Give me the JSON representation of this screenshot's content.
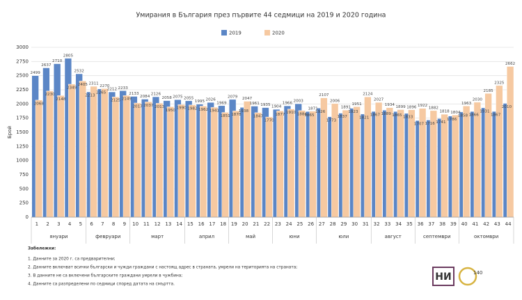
{
  "chart_data": {
    "type": "bar",
    "title": "Умирания в България през първите 44 седмици на 2019 и 2020 година",
    "y_label": "Брой",
    "categories": [
      "1",
      "2",
      "3",
      "4",
      "5",
      "6",
      "7",
      "8",
      "9",
      "10",
      "11",
      "12",
      "13",
      "14",
      "15",
      "16",
      "17",
      "18",
      "19",
      "20",
      "21",
      "22",
      "23",
      "24",
      "25",
      "26",
      "27",
      "28",
      "29",
      "30",
      "31",
      "32",
      "33",
      "34",
      "35",
      "36",
      "37",
      "38",
      "39",
      "40",
      "41",
      "42",
      "43",
      "44"
    ],
    "months": [
      "януари",
      "февруари",
      "март",
      "април",
      "май",
      "юни",
      "юли",
      "август",
      "септември",
      "октомври"
    ],
    "series": [
      {
        "name": "2019",
        "color": "#5b86c6",
        "values": [
          2499,
          2637,
          2710,
          2805,
          2532,
          2213,
          2265,
          2212,
          2233,
          2133,
          2084,
          2126,
          2058,
          2075,
          2055,
          1995,
          2026,
          1969,
          2079,
          1938,
          1961,
          1935,
          1904,
          1966,
          2003,
          1865,
          1926,
          1773,
          1837,
          1923,
          1821,
          1867,
          1889,
          1865,
          1833,
          1707,
          1716,
          1741,
          1786,
          1858,
          1866,
          1931,
          1867,
          2010
        ]
      },
      {
        "name": "2020",
        "color": "#f6c9a1",
        "values": [
          2068,
          2230,
          2148,
          2349,
          2405,
          2311,
          2270,
          2125,
          2149,
          2017,
          2037,
          2013,
          1950,
          1990,
          1982,
          1962,
          1941,
          1851,
          1878,
          2047,
          1847,
          1770,
          1877,
          1910,
          1884,
          1871,
          2107,
          2006,
          1891,
          1951,
          2124,
          2027,
          1934,
          1899,
          1896,
          1922,
          1882,
          1818,
          1804,
          1963,
          2030,
          2185,
          2325,
          2662
        ]
      }
    ],
    "ylim": [
      0,
      3000
    ],
    "yticks": [
      0,
      250,
      500,
      750,
      1000,
      1250,
      1500,
      1750,
      2000,
      2250,
      2500,
      2750,
      3000
    ],
    "grid": true,
    "legend": "top",
    "notes_title": "Забележки:",
    "notes": [
      "1. Данните за 2020 г. са предварителни;",
      "2. Данните включват всички български и чужди граждани с настоящ адрес в страната, умрели на територията на страната;",
      "3. В данните не са включени българските граждани умрели в чужбина;",
      "4. Данните са разпределени по седмици според датата на смъртта."
    ],
    "logo_text": "140"
  }
}
